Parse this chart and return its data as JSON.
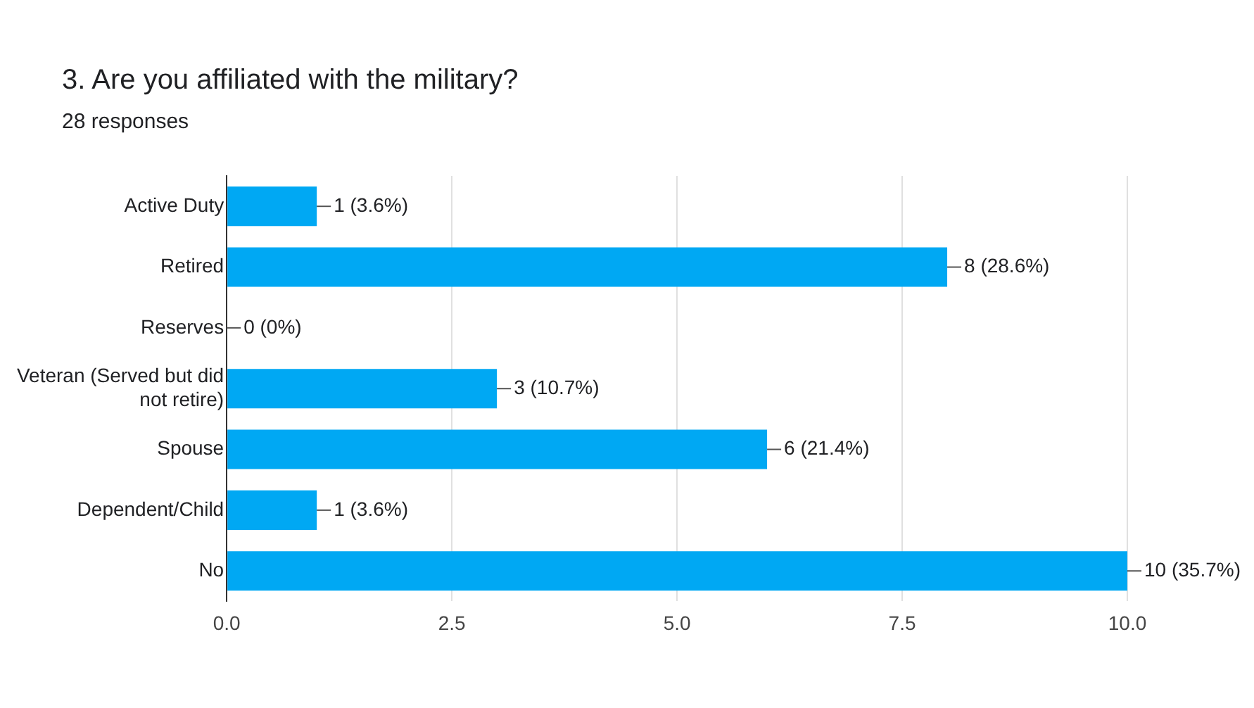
{
  "chart_data": {
    "type": "bar",
    "orientation": "horizontal",
    "title": "3.  Are you affiliated with the military?",
    "subtitle": "28 responses",
    "categories": [
      "Active Duty",
      "Retired",
      "Reserves",
      "Veteran (Served but did not retire)",
      "Spouse",
      "Dependent/Child",
      "No"
    ],
    "values": [
      1,
      8,
      0,
      3,
      6,
      1,
      10
    ],
    "value_labels": [
      "1 (3.6%)",
      "8 (28.6%)",
      "0 (0%)",
      "3 (10.7%)",
      "6 (21.4%)",
      "1 (3.6%)",
      "10 (35.7%)"
    ],
    "color": "#00a8f3",
    "xlim": [
      0,
      10
    ],
    "xticks": [
      {
        "value": 0,
        "label": "0.0"
      },
      {
        "value": 2.5,
        "label": "2.5"
      },
      {
        "value": 5,
        "label": "5.0"
      },
      {
        "value": 7.5,
        "label": "7.5"
      },
      {
        "value": 10,
        "label": "10.0"
      }
    ],
    "grid": "x"
  }
}
